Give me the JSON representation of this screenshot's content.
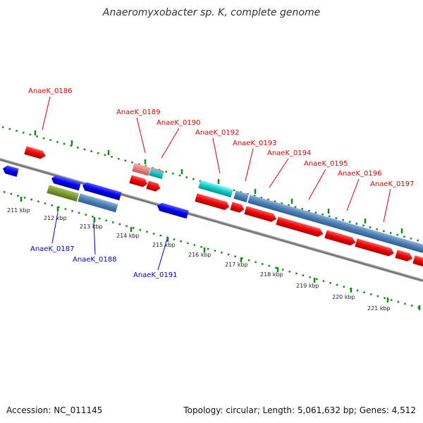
{
  "title": "Anaeromyxobacter sp. K, complete genome",
  "accession": "Accession: NC_011145",
  "topology": "Topology: circular; Length: 5,061,632 bp; Genes: 4,512",
  "colors": {
    "forward_label": "#dd0000",
    "reverse_label": "#0000cc",
    "tick": "#118811",
    "backbone": "#808080"
  },
  "kbp_labels": [
    "211 kbp",
    "212 kbp",
    "213 kbp",
    "214 kbp",
    "215 kbp",
    "216 kbp",
    "217 kbp",
    "218 kbp",
    "219 kbp",
    "220 kbp",
    "221 kbp"
  ],
  "gene_labels": [
    {
      "text": "AnaeK_0186",
      "strand": "forward"
    },
    {
      "text": "AnaeK_0189",
      "strand": "forward"
    },
    {
      "text": "AnaeK_0190",
      "strand": "forward"
    },
    {
      "text": "AnaeK_0192",
      "strand": "forward"
    },
    {
      "text": "AnaeK_0193",
      "strand": "forward"
    },
    {
      "text": "AnaeK_0194",
      "strand": "forward"
    },
    {
      "text": "AnaeK_0195",
      "strand": "forward"
    },
    {
      "text": "AnaeK_0196",
      "strand": "forward"
    },
    {
      "text": "AnaeK_0197",
      "strand": "forward"
    },
    {
      "text": "AnaeK_0187",
      "strand": "reverse"
    },
    {
      "text": "AnaeK_0188",
      "strand": "reverse"
    },
    {
      "text": "AnaeK_0191",
      "strand": "reverse"
    }
  ]
}
